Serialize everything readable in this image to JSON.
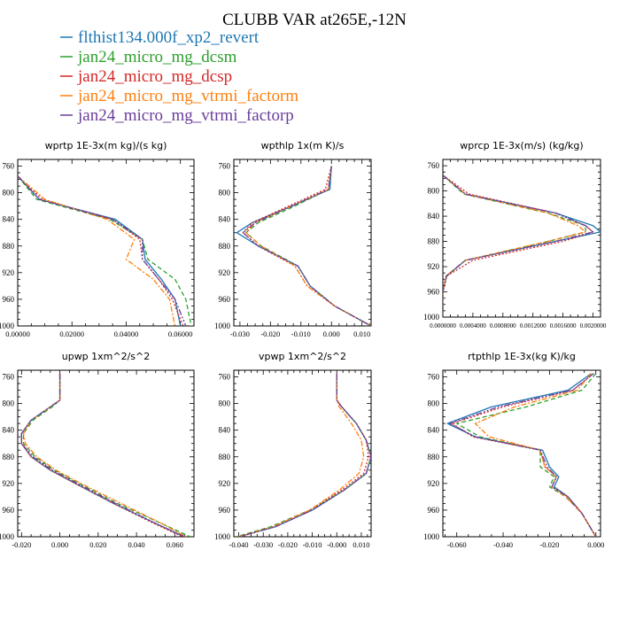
{
  "page": {
    "title": "CLUBB VAR at265E,-12N"
  },
  "legend": [
    {
      "label": "flthist134.000f_xp2_revert",
      "color": "#1f77b4",
      "dash": ""
    },
    {
      "label": "jan24_micro_mg_dcsm",
      "color": "#2ca02c",
      "dash": "5,3"
    },
    {
      "label": "jan24_micro_mg_dcsp",
      "color": "#d62728",
      "dash": "2,2"
    },
    {
      "label": "jan24_micro_mg_vtrmi_factorm",
      "color": "#ff7f0e",
      "dash": "6,2,2,2"
    },
    {
      "label": "jan24_micro_mg_vtrmi_factorp",
      "color": "#6a3d9a",
      "dash": "7,2,2,2,2,2"
    }
  ],
  "chart_data": [
    {
      "type": "line",
      "title": "wprtp  1E-3x(m kg)/(s kg)",
      "xlim": [
        0.0,
        0.065
      ],
      "ylim": [
        1000,
        750
      ],
      "x_ticks": [
        "0.00000",
        "0.02000",
        "0.04000",
        "0.06000"
      ],
      "x_tick_values": [
        0.0,
        0.02,
        0.04,
        0.06
      ],
      "y_ticks": [
        "760",
        "800",
        "840",
        "880",
        "920",
        "960",
        "1000"
      ],
      "y": [
        775,
        810,
        840,
        870,
        900,
        930,
        960,
        1000
      ],
      "series": [
        {
          "values": [
            0.0,
            0.008,
            0.036,
            0.046,
            0.047,
            0.053,
            0.058,
            0.06
          ]
        },
        {
          "values": [
            0.0,
            0.007,
            0.034,
            0.046,
            0.048,
            0.058,
            0.062,
            0.064
          ]
        },
        {
          "values": [
            0.0,
            0.009,
            0.035,
            0.045,
            0.046,
            0.052,
            0.057,
            0.061
          ]
        },
        {
          "values": [
            0.0,
            0.01,
            0.033,
            0.043,
            0.04,
            0.05,
            0.056,
            0.058
          ]
        },
        {
          "values": [
            0.0,
            0.008,
            0.035,
            0.046,
            0.046,
            0.052,
            0.058,
            0.062
          ]
        }
      ]
    },
    {
      "type": "line",
      "title": "wpthlp  1x(m K)/s",
      "xlim": [
        -0.032,
        0.013
      ],
      "ylim": [
        1000,
        750
      ],
      "x_ticks": [
        "-0.030",
        "-0.020",
        "-0.010",
        "0.000",
        "0.010"
      ],
      "x_tick_values": [
        -0.03,
        -0.02,
        -0.01,
        0.0,
        0.01
      ],
      "y_ticks": [
        "760",
        "800",
        "840",
        "880",
        "920",
        "960",
        "1000"
      ],
      "y": [
        760,
        795,
        820,
        845,
        860,
        880,
        910,
        940,
        970,
        1000
      ],
      "series": [
        {
          "values": [
            0.0,
            -0.0005,
            -0.013,
            -0.026,
            -0.031,
            -0.024,
            -0.011,
            -0.007,
            0.001,
            0.013
          ]
        },
        {
          "values": [
            0.0,
            -0.001,
            -0.012,
            -0.024,
            -0.028,
            -0.023,
            -0.011,
            -0.007,
            0.001,
            0.013
          ]
        },
        {
          "values": [
            0.0,
            -0.002,
            -0.014,
            -0.026,
            -0.029,
            -0.024,
            -0.012,
            -0.008,
            0.001,
            0.013
          ]
        },
        {
          "values": [
            0.0,
            -0.001,
            -0.013,
            -0.025,
            -0.028,
            -0.023,
            -0.012,
            -0.008,
            0.001,
            0.013
          ]
        },
        {
          "values": [
            0.0,
            -0.001,
            -0.013,
            -0.025,
            -0.029,
            -0.024,
            -0.011,
            -0.007,
            0.001,
            0.013
          ]
        }
      ]
    },
    {
      "type": "line",
      "title": "wprcp  1E-3x(m/s) (kg/kg)",
      "xlim": [
        0.0,
        0.0021
      ],
      "ylim": [
        1000,
        750
      ],
      "x_ticks": [
        "0.0000000",
        "0.0004000",
        "0.0008000",
        "0.0012000",
        "0.0016000",
        "0.0020000"
      ],
      "x_tick_values": [
        0.0,
        0.0004,
        0.0008,
        0.0012,
        0.0016,
        0.002
      ],
      "y_ticks": [
        "760",
        "800",
        "840",
        "880",
        "920",
        "960",
        "1000"
      ],
      "y": [
        775,
        805,
        835,
        855,
        865,
        880,
        910,
        935,
        960,
        1000
      ],
      "series": [
        {
          "values": [
            0.0,
            0.0003,
            0.0015,
            0.002,
            0.0021,
            0.0015,
            0.0003,
            5e-05,
            0.0,
            0.0
          ]
        },
        {
          "values": [
            0.0,
            0.00028,
            0.0014,
            0.0019,
            0.0019,
            0.0014,
            0.0003,
            4e-05,
            0.0,
            0.0
          ]
        },
        {
          "values": [
            0.0,
            0.00035,
            0.0015,
            0.0019,
            0.002,
            0.0016,
            0.0004,
            5e-05,
            0.0,
            0.0
          ]
        },
        {
          "values": [
            0.0,
            0.0003,
            0.0014,
            0.0018,
            0.0019,
            0.0014,
            0.0003,
            4e-05,
            0.0,
            0.0
          ]
        },
        {
          "values": [
            0.0,
            0.0003,
            0.0015,
            0.0019,
            0.002,
            0.0015,
            0.0003,
            5e-05,
            0.0,
            0.0
          ]
        }
      ]
    },
    {
      "type": "line",
      "title": "upwp  1xm^2/s^2",
      "xlim": [
        -0.022,
        0.07
      ],
      "ylim": [
        1000,
        750
      ],
      "x_ticks": [
        "-0.020",
        "0.000",
        "0.020",
        "0.040",
        "0.060"
      ],
      "x_tick_values": [
        -0.02,
        0.0,
        0.02,
        0.04,
        0.06
      ],
      "y_ticks": [
        "760",
        "800",
        "840",
        "880",
        "920",
        "960",
        "1000"
      ],
      "y": [
        755,
        795,
        805,
        825,
        845,
        860,
        880,
        900,
        920,
        950,
        980,
        1000
      ],
      "series": [
        {
          "values": [
            0.0,
            0.0,
            -0.005,
            -0.015,
            -0.02,
            -0.02,
            -0.015,
            -0.005,
            0.008,
            0.028,
            0.05,
            0.065
          ]
        },
        {
          "values": [
            0.0,
            0.0,
            -0.004,
            -0.014,
            -0.019,
            -0.019,
            -0.013,
            -0.003,
            0.01,
            0.03,
            0.053,
            0.068
          ]
        },
        {
          "values": [
            0.0,
            0.0,
            -0.005,
            -0.015,
            -0.02,
            -0.02,
            -0.015,
            -0.005,
            0.008,
            0.028,
            0.049,
            0.064
          ]
        },
        {
          "values": [
            0.0,
            0.0,
            -0.005,
            -0.015,
            -0.019,
            -0.018,
            -0.012,
            -0.002,
            0.011,
            0.032,
            0.053,
            0.066
          ]
        },
        {
          "values": [
            0.0,
            0.0,
            -0.005,
            -0.015,
            -0.02,
            -0.02,
            -0.014,
            -0.004,
            0.009,
            0.029,
            0.05,
            0.065
          ]
        }
      ]
    },
    {
      "type": "line",
      "title": "vpwp  1xm^2/s^2",
      "xlim": [
        -0.042,
        0.014
      ],
      "ylim": [
        1000,
        750
      ],
      "x_ticks": [
        "-0.040",
        "-0.030",
        "-0.020",
        "-0.010",
        "-0.000",
        "0.010"
      ],
      "x_tick_values": [
        -0.04,
        -0.03,
        -0.02,
        -0.01,
        0.0,
        0.01
      ],
      "y_ticks": [
        "760",
        "800",
        "840",
        "880",
        "920",
        "960",
        "1000"
      ],
      "y": [
        755,
        795,
        805,
        830,
        855,
        880,
        905,
        930,
        960,
        985,
        1000
      ],
      "series": [
        {
          "values": [
            0.0,
            0.0,
            0.002,
            0.008,
            0.012,
            0.014,
            0.012,
            0.003,
            -0.01,
            -0.025,
            -0.04
          ]
        },
        {
          "values": [
            0.0,
            0.0,
            0.002,
            0.008,
            0.012,
            0.014,
            0.012,
            0.003,
            -0.011,
            -0.027,
            -0.041
          ]
        },
        {
          "values": [
            0.0,
            0.0,
            0.002,
            0.008,
            0.012,
            0.013,
            0.011,
            0.002,
            -0.011,
            -0.026,
            -0.04
          ]
        },
        {
          "values": [
            0.0,
            0.0,
            0.001,
            0.006,
            0.01,
            0.011,
            0.009,
            0.001,
            -0.011,
            -0.026,
            -0.04
          ]
        },
        {
          "values": [
            0.0,
            0.0,
            0.002,
            0.008,
            0.012,
            0.014,
            0.012,
            0.003,
            -0.01,
            -0.025,
            -0.04
          ]
        }
      ]
    },
    {
      "type": "line",
      "title": "rtpthlp  1E-3x(kg K)/kg",
      "xlim": [
        -0.066,
        0.002
      ],
      "ylim": [
        1000,
        750
      ],
      "x_ticks": [
        "-0.060",
        "-0.040",
        "-0.020",
        "0.000"
      ],
      "x_tick_values": [
        -0.06,
        -0.04,
        -0.02,
        0.0
      ],
      "y_ticks": [
        "760",
        "800",
        "840",
        "880",
        "920",
        "960",
        "1000"
      ],
      "y": [
        755,
        780,
        805,
        830,
        850,
        870,
        895,
        910,
        925,
        940,
        965,
        1000
      ],
      "series": [
        {
          "values": [
            -0.002,
            -0.012,
            -0.045,
            -0.064,
            -0.052,
            -0.023,
            -0.02,
            -0.016,
            -0.018,
            -0.012,
            -0.006,
            0.0
          ]
        },
        {
          "values": [
            0.0,
            -0.006,
            -0.03,
            -0.06,
            -0.05,
            -0.024,
            -0.024,
            -0.018,
            -0.02,
            -0.013,
            -0.006,
            0.0
          ]
        },
        {
          "values": [
            -0.001,
            -0.01,
            -0.04,
            -0.062,
            -0.053,
            -0.024,
            -0.022,
            -0.017,
            -0.019,
            -0.012,
            -0.006,
            0.0
          ]
        },
        {
          "values": [
            -0.002,
            -0.008,
            -0.035,
            -0.052,
            -0.046,
            -0.024,
            -0.022,
            -0.017,
            -0.019,
            -0.013,
            -0.006,
            0.0
          ]
        },
        {
          "values": [
            -0.001,
            -0.01,
            -0.042,
            -0.063,
            -0.052,
            -0.024,
            -0.021,
            -0.017,
            -0.019,
            -0.012,
            -0.006,
            0.0
          ]
        }
      ]
    }
  ]
}
